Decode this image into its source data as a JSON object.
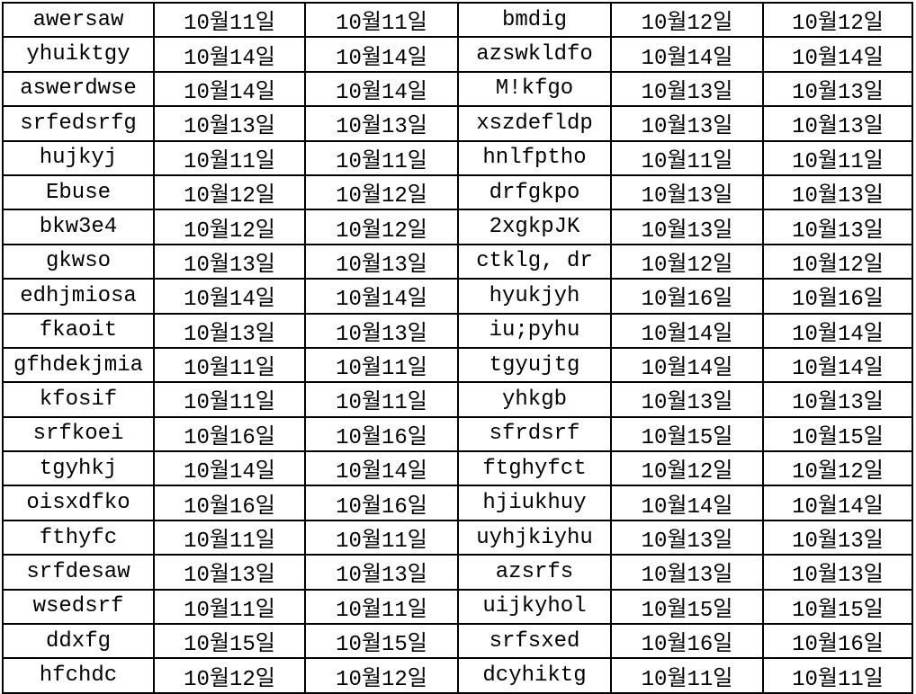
{
  "colors": {
    "background": "#ffffff",
    "grid_border": "#000000",
    "text": "#000000"
  },
  "table": {
    "row_count": 20,
    "column_count": 6,
    "rows": [
      [
        "awersaw",
        "10월11일",
        "10월11일",
        "bmdig",
        "10월12일",
        "10월12일"
      ],
      [
        "yhuiktgy",
        "10월14일",
        "10월14일",
        "azswkldfo",
        "10월14일",
        "10월14일"
      ],
      [
        "aswerdwse",
        "10월14일",
        "10월14일",
        "M!kfgo",
        "10월13일",
        "10월13일"
      ],
      [
        "srfedsrfg",
        "10월13일",
        "10월13일",
        "xszdefldp",
        "10월13일",
        "10월13일"
      ],
      [
        "hujkyj",
        "10월11일",
        "10월11일",
        "hnlfptho",
        "10월11일",
        "10월11일"
      ],
      [
        "Ebuse",
        "10월12일",
        "10월12일",
        "drfgkpo",
        "10월13일",
        "10월13일"
      ],
      [
        "bkw3e4",
        "10월12일",
        "10월12일",
        "2xgkpJK",
        "10월13일",
        "10월13일"
      ],
      [
        "gkwso",
        "10월13일",
        "10월13일",
        "ctklg, dr",
        "10월12일",
        "10월12일"
      ],
      [
        "edhjmiosa",
        "10월14일",
        "10월14일",
        "hyukjyh",
        "10월16일",
        "10월16일"
      ],
      [
        "fkaoit",
        "10월13일",
        "10월13일",
        "iu;pyhu",
        "10월14일",
        "10월14일"
      ],
      [
        "gfhdekjmia",
        "10월11일",
        "10월11일",
        "tgyujtg",
        "10월14일",
        "10월14일"
      ],
      [
        "kfosif",
        "10월11일",
        "10월11일",
        "yhkgb",
        "10월13일",
        "10월13일"
      ],
      [
        "srfkoei",
        "10월16일",
        "10월16일",
        "sfrdsrf",
        "10월15일",
        "10월15일"
      ],
      [
        "tgyhkj",
        "10월14일",
        "10월14일",
        "ftghyfct",
        "10월12일",
        "10월12일"
      ],
      [
        "oisxdfko",
        "10월16일",
        "10월16일",
        "hjiukhuy",
        "10월14일",
        "10월14일"
      ],
      [
        "fthyfc",
        "10월11일",
        "10월11일",
        "uyhjkiyhu",
        "10월13일",
        "10월13일"
      ],
      [
        "srfdesaw",
        "10월13일",
        "10월13일",
        "azsrfs",
        "10월13일",
        "10월13일"
      ],
      [
        "wsedsrf",
        "10월11일",
        "10월11일",
        "uijkyhol",
        "10월15일",
        "10월15일"
      ],
      [
        "ddxfg",
        "10월15일",
        "10월15일",
        "srfsxed",
        "10월16일",
        "10월16일"
      ],
      [
        "hfchdc",
        "10월12일",
        "10월12일",
        "dcyhiktg",
        "10월11일",
        "10월11일"
      ]
    ]
  }
}
